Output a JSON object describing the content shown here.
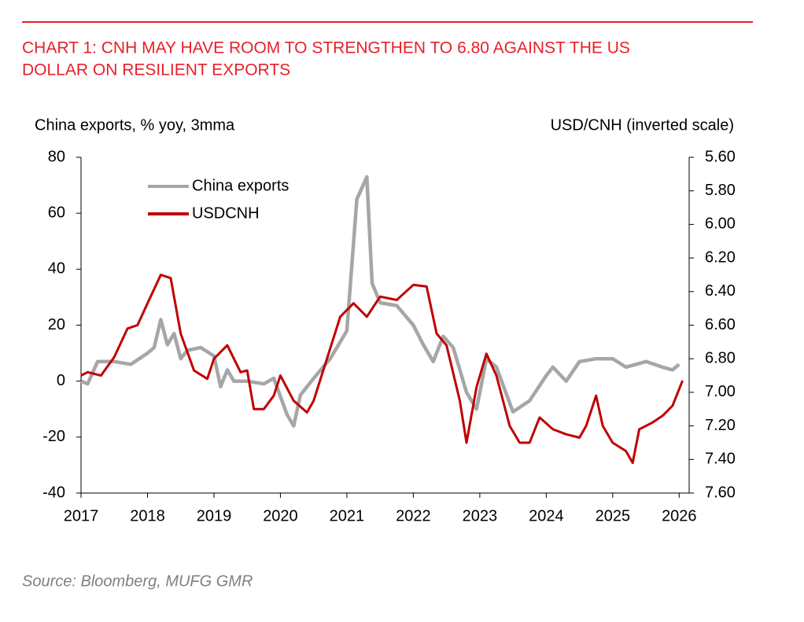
{
  "chart_data": {
    "type": "line",
    "title": "CHART 1: CNH MAY HAVE ROOM TO STRENGTHEN TO  6.80 AGAINST THE US",
    "title_line2": "DOLLAR ON RESILIENT EXPORTS",
    "y_label": "China exports, % yoy, 3mma",
    "y2_label": "USD/CNH (inverted scale)",
    "source": "Source: Bloomberg, MUFG GMR",
    "xlim": [
      2017,
      2026.15
    ],
    "xticks": [
      2017,
      2018,
      2019,
      2020,
      2021,
      2022,
      2023,
      2024,
      2025,
      2026
    ],
    "ylim": [
      -40,
      80
    ],
    "yticks": [
      -40,
      -20,
      0,
      20,
      40,
      60,
      80
    ],
    "y2lim": [
      7.6,
      5.6
    ],
    "y2ticks": [
      {
        "value": 5.6,
        "label": "5.60"
      },
      {
        "value": 5.8,
        "label": "5.80"
      },
      {
        "value": 6.0,
        "label": "6.00"
      },
      {
        "value": 6.2,
        "label": "6.20"
      },
      {
        "value": 6.4,
        "label": "6.40"
      },
      {
        "value": 6.6,
        "label": "6.60"
      },
      {
        "value": 6.8,
        "label": "6.80"
      },
      {
        "value": 7.0,
        "label": "7.00"
      },
      {
        "value": 7.2,
        "label": "7.20"
      },
      {
        "value": 7.4,
        "label": "7.40"
      },
      {
        "value": 7.6,
        "label": "7.60"
      }
    ],
    "legend": "upper left",
    "series": [
      {
        "name": "China exports",
        "color": "#a6a6a6",
        "axis": "y",
        "x": [
          2017.0,
          2017.1,
          2017.25,
          2017.5,
          2017.75,
          2018.0,
          2018.1,
          2018.2,
          2018.3,
          2018.4,
          2018.5,
          2018.6,
          2018.8,
          2019.0,
          2019.1,
          2019.2,
          2019.3,
          2019.5,
          2019.75,
          2019.9,
          2020.1,
          2020.2,
          2020.3,
          2020.5,
          2020.75,
          2021.0,
          2021.15,
          2021.3,
          2021.38,
          2021.5,
          2021.75,
          2022.0,
          2022.15,
          2022.3,
          2022.45,
          2022.6,
          2022.8,
          2022.95,
          2023.1,
          2023.25,
          2023.5,
          2023.75,
          2024.0,
          2024.1,
          2024.3,
          2024.5,
          2024.75,
          2025.0,
          2025.2,
          2025.5,
          2025.75,
          2025.9,
          2026.0
        ],
        "values": [
          0,
          -1,
          7,
          7,
          6,
          10,
          12,
          22,
          13,
          17,
          8,
          11,
          12,
          9,
          -2,
          4,
          0,
          0,
          -1,
          1,
          -12,
          -16,
          -5,
          1,
          8,
          18,
          65,
          73,
          35,
          28,
          27,
          20,
          13,
          7,
          16,
          12,
          -4,
          -10,
          8,
          5,
          -11,
          -7,
          2,
          5,
          0,
          7,
          8,
          8,
          5,
          7,
          5,
          4,
          6
        ]
      },
      {
        "name": "USDCNH",
        "color": "#c00000",
        "axis": "y2",
        "x": [
          2017.0,
          2017.1,
          2017.3,
          2017.5,
          2017.7,
          2017.85,
          2018.0,
          2018.2,
          2018.35,
          2018.5,
          2018.7,
          2018.9,
          2019.0,
          2019.2,
          2019.4,
          2019.5,
          2019.6,
          2019.75,
          2019.9,
          2020.0,
          2020.2,
          2020.4,
          2020.5,
          2020.7,
          2020.9,
          2021.1,
          2021.3,
          2021.5,
          2021.75,
          2022.0,
          2022.2,
          2022.35,
          2022.5,
          2022.7,
          2022.8,
          2022.95,
          2023.1,
          2023.25,
          2023.45,
          2023.6,
          2023.75,
          2023.9,
          2024.1,
          2024.3,
          2024.5,
          2024.6,
          2024.75,
          2024.85,
          2025.0,
          2025.2,
          2025.3,
          2025.4,
          2025.6,
          2025.75,
          2025.9,
          2026.05
        ],
        "values": [
          6.9,
          6.88,
          6.9,
          6.79,
          6.62,
          6.6,
          6.47,
          6.3,
          6.32,
          6.65,
          6.87,
          6.92,
          6.8,
          6.72,
          6.88,
          6.87,
          7.1,
          7.1,
          7.02,
          6.9,
          7.05,
          7.12,
          7.05,
          6.8,
          6.55,
          6.47,
          6.55,
          6.43,
          6.45,
          6.36,
          6.37,
          6.65,
          6.72,
          7.05,
          7.3,
          6.97,
          6.77,
          6.9,
          7.2,
          7.3,
          7.3,
          7.15,
          7.22,
          7.25,
          7.27,
          7.2,
          7.02,
          7.2,
          7.3,
          7.35,
          7.42,
          7.22,
          7.18,
          7.14,
          7.08,
          6.93
        ]
      }
    ]
  }
}
